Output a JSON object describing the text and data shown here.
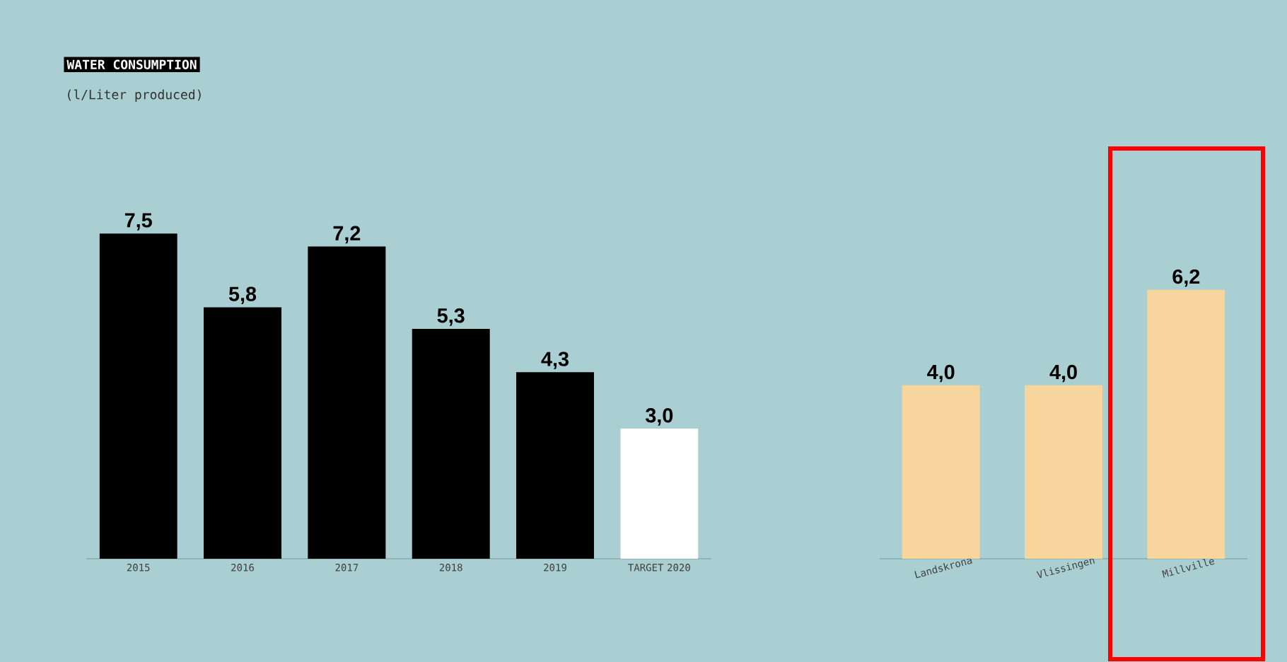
{
  "chart_data": [
    {
      "type": "bar",
      "title": "WATER CONSUMPTION",
      "subtitle": "(l/Liter produced)",
      "categories": [
        "2015",
        "2016",
        "2017",
        "2018",
        "2019",
        "TARGET 2020"
      ],
      "values": [
        7.5,
        5.8,
        7.2,
        5.3,
        4.3,
        3.0
      ],
      "value_labels": [
        "7,5",
        "5,8",
        "7,2",
        "5,3",
        "4,3",
        "3,0"
      ],
      "colors": [
        "#000000",
        "#000000",
        "#000000",
        "#000000",
        "#000000",
        "#ffffff"
      ],
      "tick_labels": "x"
    },
    {
      "type": "bar",
      "categories": [
        "Landskrona",
        "Vlissingen",
        "Millville"
      ],
      "values": [
        4.0,
        4.0,
        6.2
      ],
      "value_labels": [
        "4,0",
        "4,0",
        "6,2"
      ],
      "colors": [
        "#f7d59c",
        "#f7d59c",
        "#f7d59c"
      ],
      "tick_labels": "x"
    }
  ]
}
